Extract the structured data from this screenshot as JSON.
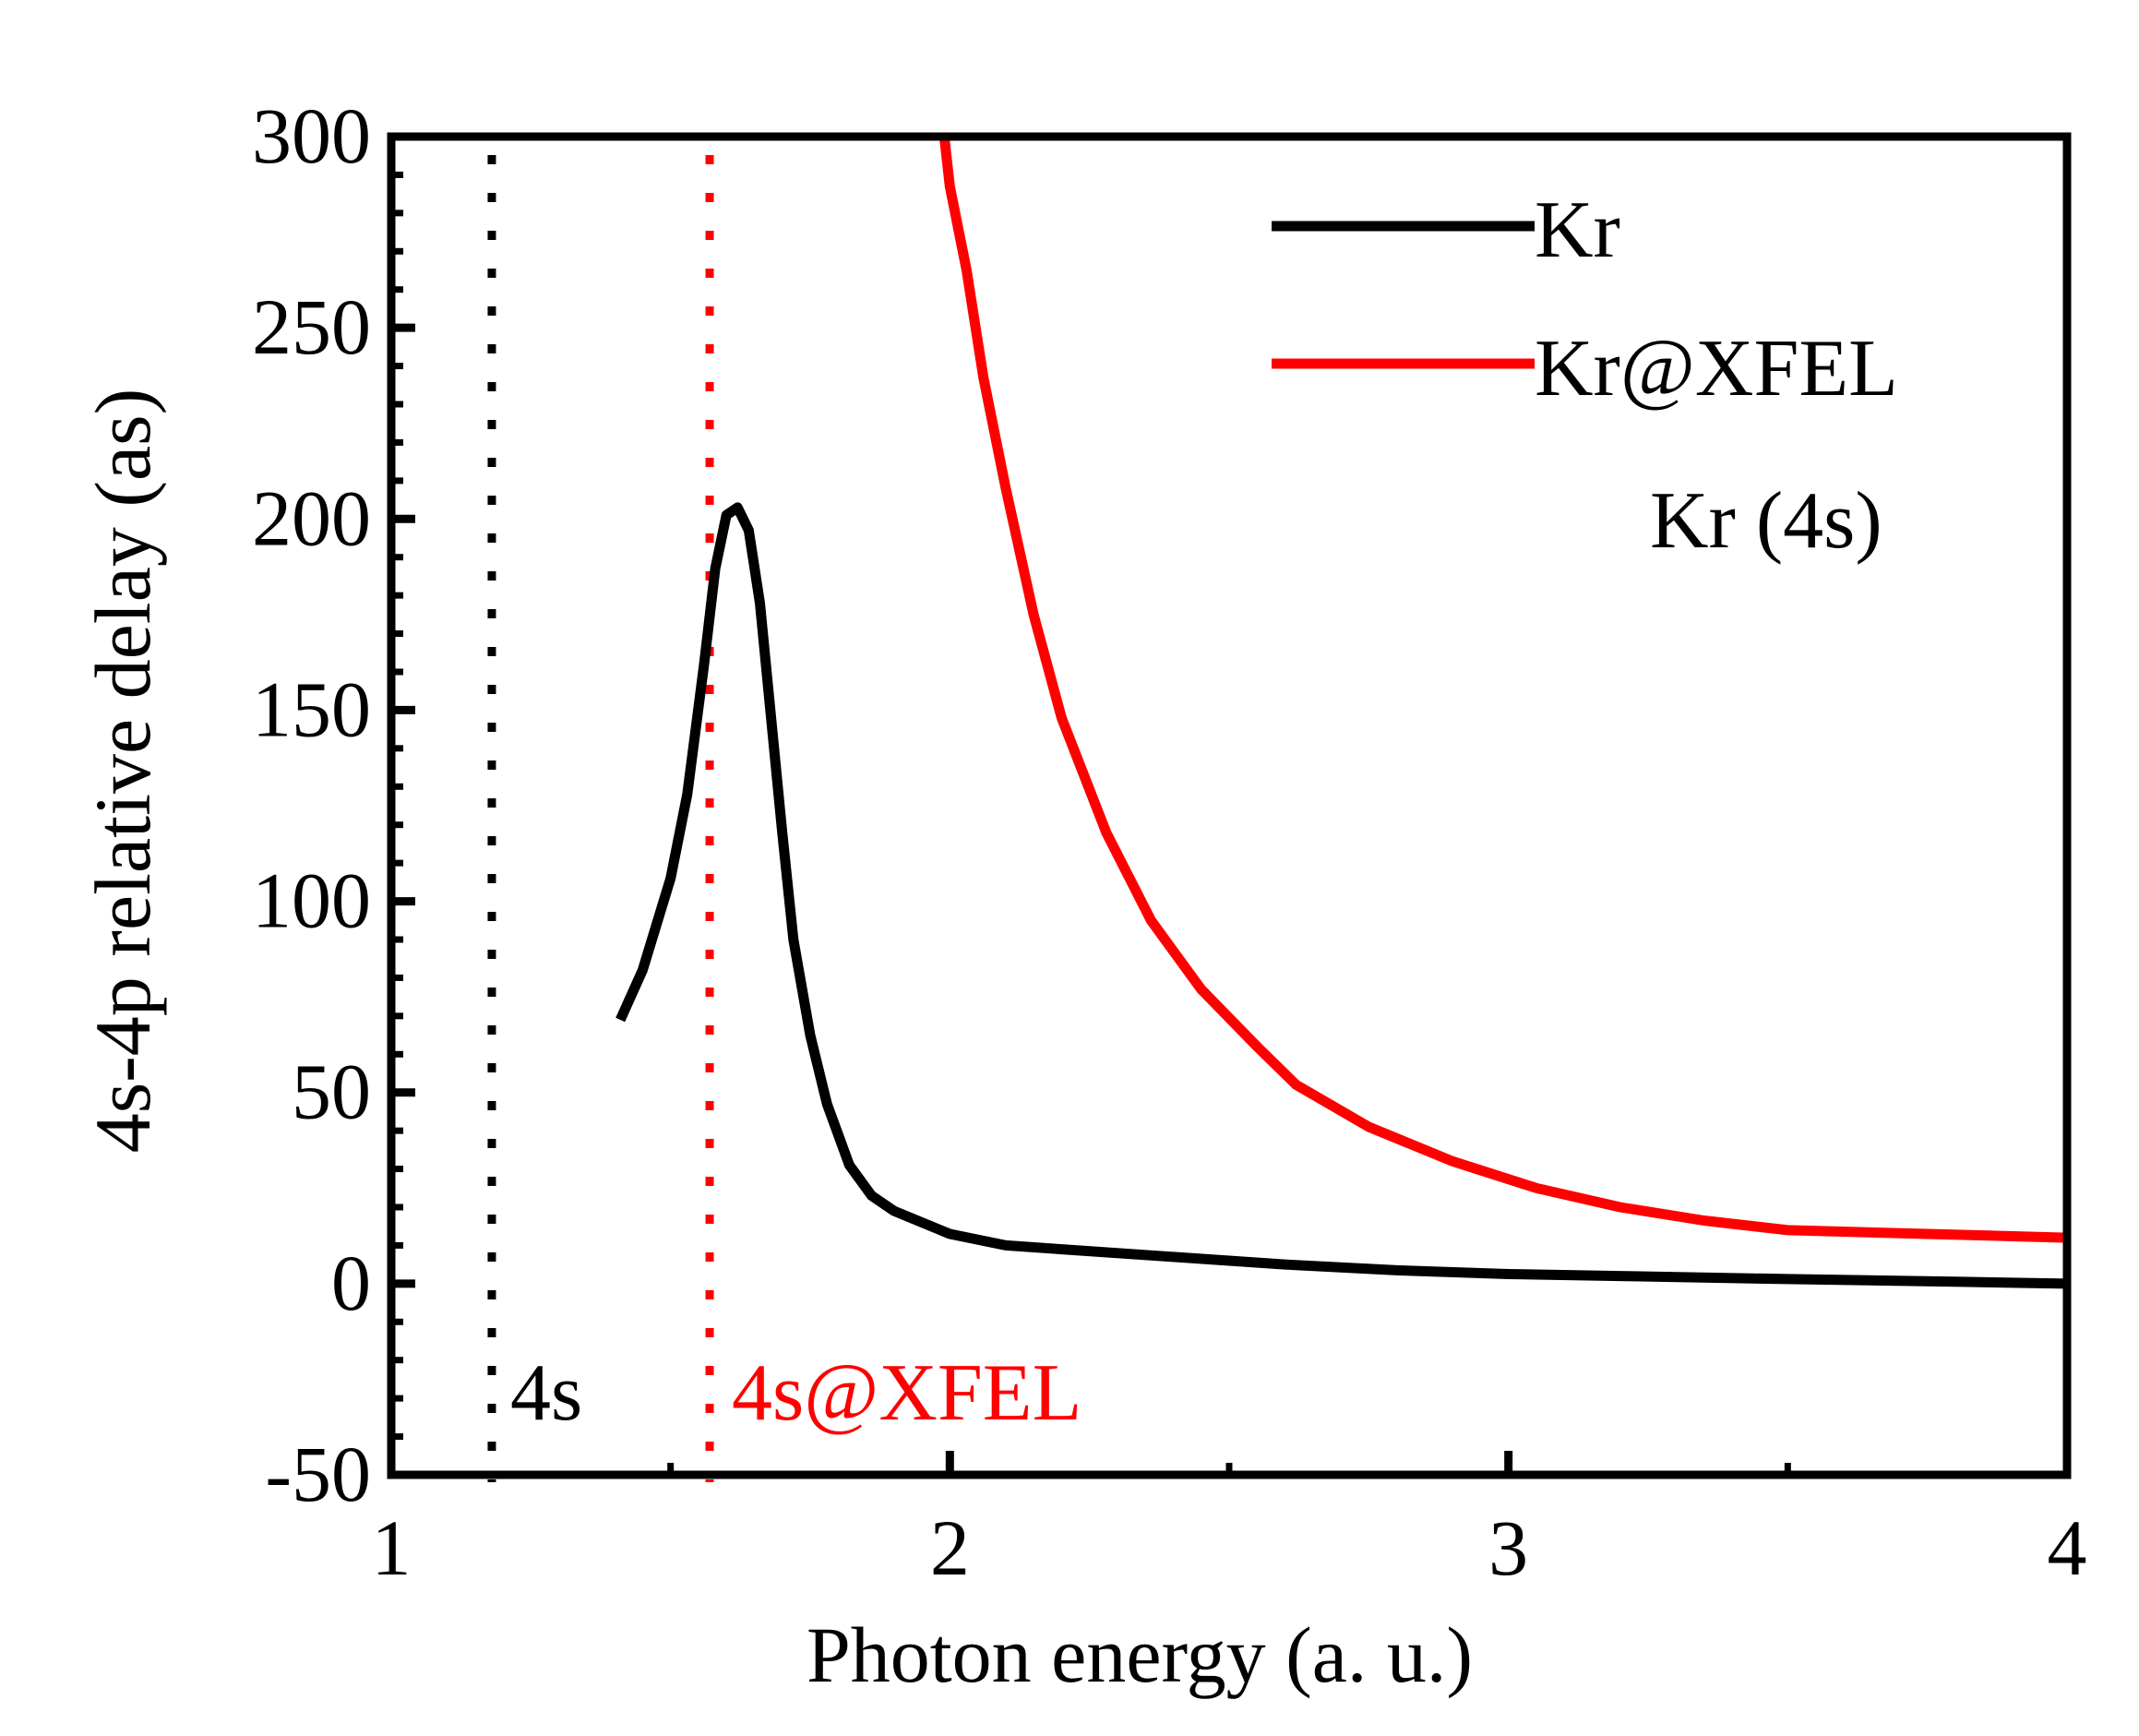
{
  "chart_data": {
    "type": "line",
    "title": "",
    "xlabel": "Photon energy (a. u.)",
    "ylabel": "4s-4p relative delay (as)",
    "xlim": [
      1,
      4
    ],
    "ylim": [
      -50,
      300
    ],
    "xticks": [
      1,
      2,
      3,
      4
    ],
    "yticks": [
      -50,
      0,
      50,
      100,
      150,
      200,
      250,
      300
    ],
    "legend_placement": "top-right",
    "panel_label": "Kr (4s)",
    "colors": {
      "Kr": "#000000",
      "Kr@XFEL": "#ff0000"
    },
    "series": [
      {
        "name": "Kr",
        "color": "#000000",
        "x": [
          1.41,
          1.45,
          1.5,
          1.53,
          1.56,
          1.58,
          1.6,
          1.62,
          1.64,
          1.66,
          1.68,
          1.7,
          1.72,
          1.75,
          1.78,
          1.82,
          1.86,
          1.9,
          1.95,
          2.0,
          2.1,
          2.2,
          2.4,
          2.6,
          2.8,
          3.0,
          3.2,
          3.5,
          3.8,
          4.0
        ],
        "values": [
          69,
          82,
          106,
          128,
          162,
          187,
          201,
          203,
          197,
          178,
          148,
          118,
          90,
          65,
          47,
          31,
          23,
          19,
          16,
          13,
          10,
          9,
          7,
          5,
          3.5,
          2.5,
          2,
          1.2,
          0.5,
          0
        ]
      },
      {
        "name": "Kr@XFEL",
        "color": "#ff0000",
        "x": [
          1.99,
          2.0,
          2.03,
          2.06,
          2.1,
          2.15,
          2.2,
          2.28,
          2.36,
          2.45,
          2.55,
          2.62,
          2.75,
          2.9,
          3.05,
          3.2,
          3.35,
          3.5,
          3.75,
          4.0
        ],
        "values": [
          300,
          287,
          265,
          237,
          208,
          175,
          148,
          118,
          95,
          77,
          62,
          52,
          41,
          32,
          25,
          20,
          16.5,
          14,
          13,
          12
        ]
      }
    ],
    "thresholds": [
      {
        "label": "4s",
        "x": 1.18,
        "color": "#000000"
      },
      {
        "label": "4s@XFEL",
        "x": 1.57,
        "color": "#ff0000"
      }
    ]
  }
}
